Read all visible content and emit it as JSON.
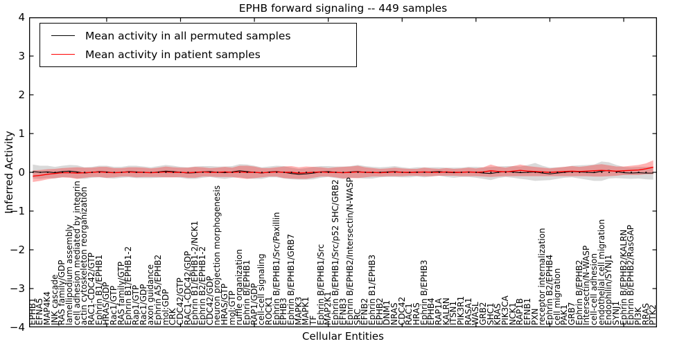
{
  "chart_data": {
    "type": "line",
    "title": "EPHB forward signaling -- 449 samples",
    "xlabel": "Cellular Entities",
    "ylabel": "Inferred Activity",
    "ylim": [
      -4,
      4
    ],
    "yticks": [
      4,
      3,
      2,
      1,
      0,
      -1,
      -2,
      -3,
      -4
    ],
    "grid": false,
    "legend_position": "upper left",
    "x_major_tick_every": 10,
    "reference_line": {
      "value": 0,
      "style": "dotted",
      "color": "#000000"
    },
    "categories": [
      "EPHB1",
      "EFNA5",
      "MAP4K4",
      "JNK cascade",
      "RAS family/GDP",
      "lamellipodium assembly",
      "cell adhesion mediated by integrin",
      "actin cytoskeleton reorganization",
      "RAC1-CDC42/GTP",
      "Ephrin B1/EPHB1",
      "HRAS/GDP",
      "Rac1/GTP",
      "RAS family/GTP",
      "Ephrin B1/EPHB1-2",
      "Rap1/GTP",
      "Rac1/GDP",
      "axon guidance",
      "Ephrin A5/EPHB2",
      "mol:GDP",
      "CRK",
      "CDC42/GTP",
      "RAC1-CDC42/GDP",
      "Ephrin B1/EPHB1-2/NCK1",
      "Ephrin B2/EPHB1-2",
      "CDC42/GDP",
      "neuron projection morphogenesis",
      "HRAS/GTP",
      "mol:GTP",
      "ruffle organization",
      "Ephrin B/EPHB1",
      "RAP1/GDP",
      "cell-cell signaling",
      "ROCK1",
      "Ephrin B/EPHB1/Src/Paxillin",
      "EPHB3",
      "Ephrin B/EPHB1/GRB7",
      "MAPK3",
      "MAPK1",
      "TF",
      "Ephrin B/EPHB1/Src",
      "MAP2K1",
      "Ephrin B/EPHB1/Src/p52 SHC/GRB2",
      "EFNB3",
      "Ephrin B/EPHB2/Intersectin/N-WASP",
      "SRC",
      "EFNB2",
      "Ephrin B1/EPHB3",
      "EPHB2",
      "DNM1",
      "NRAS",
      "CDC42",
      "RAC1",
      "HRAS",
      "Ephrin B/EPHB3",
      "EPHB4",
      "RAP1A",
      "KALRN",
      "ITSN1",
      "PIK3R1",
      "RASA1",
      "WASL",
      "GRB2",
      "SHC1",
      "KRAS",
      "PIK3CA",
      "NCK1",
      "RAP1B",
      "EFNB1",
      "PXN",
      "receptor internalization",
      "Ephrin B2/EPHB4",
      "cell migration",
      "PAK1",
      "GRB7",
      "Ephrin B/EPHB2",
      "Intersectin/N-WASP",
      "cell-cell adhesion",
      "endothelial cell migration",
      "Endophilin/SYNJ1",
      "SYNJ1",
      "Ephrin B/EPHB2/KALRN",
      "Ephrin B/EPHB2/RasGAP",
      "PI3K",
      "RRAS",
      "PTK2"
    ],
    "series": [
      {
        "name": "Mean activity in all permuted samples",
        "color": "#000000",
        "band_color": "#000000",
        "band_opacity": 0.15,
        "values": [
          0.02,
          0.0,
          0.01,
          -0.01,
          0.02,
          0.03,
          0.01,
          -0.02,
          0.0,
          0.02,
          0.01,
          -0.01,
          0.0,
          0.02,
          0.01,
          0.0,
          -0.01,
          0.01,
          0.03,
          0.02,
          0.0,
          -0.02,
          -0.01,
          0.01,
          0.02,
          0.0,
          -0.01,
          0.01,
          0.04,
          0.02,
          0.0,
          -0.02,
          0.01,
          0.02,
          0.0,
          -0.03,
          -0.05,
          -0.04,
          -0.02,
          0.01,
          0.02,
          0.0,
          -0.01,
          0.01,
          0.02,
          0.0,
          -0.01,
          0.0,
          0.01,
          0.02,
          0.0,
          -0.01,
          0.01,
          0.0,
          0.01,
          0.02,
          0.0,
          -0.01,
          0.0,
          0.01,
          0.0,
          -0.02,
          -0.03,
          0.0,
          0.02,
          0.01,
          -0.01,
          0.0,
          0.01,
          -0.02,
          -0.04,
          -0.02,
          0.0,
          0.02,
          0.01,
          0.0,
          -0.01,
          0.03,
          0.05,
          0.02,
          -0.01,
          -0.02,
          -0.01,
          -0.02,
          -0.02
        ],
        "band_halfwidth": [
          0.18,
          0.17,
          0.16,
          0.15,
          0.15,
          0.16,
          0.17,
          0.15,
          0.14,
          0.15,
          0.16,
          0.15,
          0.14,
          0.15,
          0.16,
          0.15,
          0.14,
          0.15,
          0.16,
          0.15,
          0.14,
          0.15,
          0.16,
          0.15,
          0.14,
          0.15,
          0.16,
          0.15,
          0.17,
          0.18,
          0.17,
          0.15,
          0.14,
          0.15,
          0.16,
          0.15,
          0.14,
          0.15,
          0.16,
          0.15,
          0.14,
          0.15,
          0.16,
          0.15,
          0.17,
          0.16,
          0.15,
          0.13,
          0.13,
          0.14,
          0.13,
          0.12,
          0.12,
          0.13,
          0.12,
          0.11,
          0.12,
          0.13,
          0.12,
          0.13,
          0.14,
          0.15,
          0.17,
          0.15,
          0.14,
          0.15,
          0.16,
          0.19,
          0.23,
          0.19,
          0.16,
          0.15,
          0.14,
          0.15,
          0.17,
          0.19,
          0.21,
          0.25,
          0.21,
          0.17,
          0.15,
          0.15,
          0.15,
          0.16,
          0.17
        ]
      },
      {
        "name": "Mean activity in patient samples",
        "color": "#ff0000",
        "band_color": "#ff0000",
        "band_opacity": 0.3,
        "values": [
          -0.1,
          -0.08,
          -0.05,
          -0.03,
          -0.01,
          -0.01,
          -0.02,
          -0.01,
          0.0,
          0.01,
          0.0,
          -0.01,
          0.0,
          0.01,
          0.0,
          0.0,
          -0.01,
          0.0,
          0.01,
          0.0,
          0.0,
          -0.01,
          0.0,
          0.01,
          0.0,
          0.0,
          0.01,
          0.0,
          0.01,
          0.0,
          0.0,
          -0.01,
          0.0,
          0.01,
          0.0,
          0.0,
          -0.02,
          -0.01,
          0.0,
          0.01,
          0.0,
          0.0,
          -0.01,
          0.0,
          0.01,
          0.0,
          0.0,
          -0.01,
          0.0,
          0.01,
          0.0,
          0.0,
          0.0,
          0.01,
          0.0,
          0.0,
          0.01,
          0.0,
          0.0,
          0.01,
          0.0,
          0.01,
          0.04,
          0.02,
          0.01,
          0.03,
          0.05,
          0.03,
          0.02,
          0.01,
          0.0,
          0.01,
          0.02,
          0.03,
          0.02,
          0.03,
          0.04,
          0.05,
          0.04,
          0.03,
          0.04,
          0.05,
          0.06,
          0.09,
          0.13
        ],
        "band_halfwidth": [
          0.15,
          0.14,
          0.13,
          0.12,
          0.12,
          0.13,
          0.15,
          0.13,
          0.12,
          0.13,
          0.14,
          0.12,
          0.11,
          0.12,
          0.13,
          0.12,
          0.11,
          0.12,
          0.14,
          0.13,
          0.12,
          0.13,
          0.14,
          0.12,
          0.11,
          0.12,
          0.13,
          0.12,
          0.16,
          0.17,
          0.15,
          0.12,
          0.11,
          0.12,
          0.15,
          0.16,
          0.15,
          0.16,
          0.14,
          0.12,
          0.11,
          0.13,
          0.15,
          0.15,
          0.16,
          0.13,
          0.11,
          0.1,
          0.1,
          0.11,
          0.1,
          0.09,
          0.09,
          0.11,
          0.1,
          0.09,
          0.1,
          0.09,
          0.1,
          0.11,
          0.1,
          0.12,
          0.16,
          0.13,
          0.11,
          0.13,
          0.15,
          0.13,
          0.12,
          0.11,
          0.1,
          0.11,
          0.12,
          0.13,
          0.12,
          0.13,
          0.15,
          0.16,
          0.14,
          0.12,
          0.11,
          0.12,
          0.13,
          0.14,
          0.18
        ]
      }
    ]
  }
}
